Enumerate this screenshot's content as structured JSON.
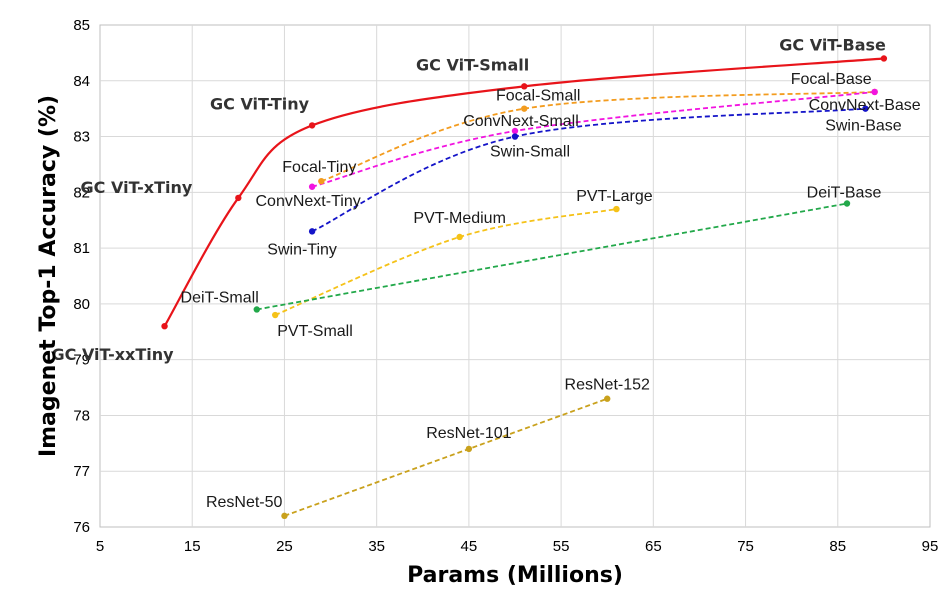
{
  "chart_data": {
    "type": "line",
    "xlabel": "Params (Millions)",
    "ylabel": "Imagenet Top-1 Accuracy (%)",
    "xlim": [
      5,
      95
    ],
    "ylim": [
      76,
      85
    ],
    "xticks": [
      5,
      15,
      25,
      35,
      45,
      55,
      65,
      75,
      85,
      95
    ],
    "yticks": [
      76,
      77,
      78,
      79,
      80,
      81,
      82,
      83,
      84,
      85
    ],
    "grid": true,
    "series": [
      {
        "id": "gcvit",
        "color": "#e8141a",
        "dashed": false,
        "smooth": true,
        "bold_labels": true,
        "points": [
          {
            "x": 12,
            "y": 79.6,
            "label": "GC ViT-xxTiny"
          },
          {
            "x": 20,
            "y": 81.9,
            "label": "GC ViT-xTiny"
          },
          {
            "x": 28,
            "y": 83.2,
            "label": "GC ViT-Tiny"
          },
          {
            "x": 51,
            "y": 83.9,
            "label": "GC ViT-Small"
          },
          {
            "x": 90,
            "y": 84.4,
            "label": "GC ViT-Base"
          }
        ]
      },
      {
        "id": "focal",
        "color": "#f39c1f",
        "dashed": true,
        "smooth": true,
        "points": [
          {
            "x": 29,
            "y": 82.2,
            "label": "Focal-Tiny"
          },
          {
            "x": 51,
            "y": 83.5,
            "label": "Focal-Small"
          },
          {
            "x": 89,
            "y": 83.8,
            "label": "Focal-Base"
          }
        ]
      },
      {
        "id": "convnext",
        "color": "#f214e0",
        "dashed": true,
        "smooth": true,
        "points": [
          {
            "x": 28,
            "y": 82.1,
            "label": "ConvNext-Tiny"
          },
          {
            "x": 50,
            "y": 83.1,
            "label": "ConvNext-Small"
          },
          {
            "x": 89,
            "y": 83.8,
            "label": "ConvNext-Base"
          }
        ]
      },
      {
        "id": "swin",
        "color": "#1414c8",
        "dashed": true,
        "smooth": true,
        "points": [
          {
            "x": 28,
            "y": 81.3,
            "label": "Swin-Tiny"
          },
          {
            "x": 50,
            "y": 83.0,
            "label": "Swin-Small"
          },
          {
            "x": 88,
            "y": 83.5,
            "label": "Swin-Base"
          }
        ]
      },
      {
        "id": "pvt",
        "color": "#f5c218",
        "dashed": true,
        "smooth": true,
        "points": [
          {
            "x": 24,
            "y": 79.8,
            "label": "PVT-Small"
          },
          {
            "x": 44,
            "y": 81.2,
            "label": "PVT-Medium"
          },
          {
            "x": 61,
            "y": 81.7,
            "label": "PVT-Large"
          }
        ]
      },
      {
        "id": "deit",
        "color": "#22a84a",
        "dashed": true,
        "smooth": false,
        "points": [
          {
            "x": 22,
            "y": 79.9,
            "label": "DeiT-Small"
          },
          {
            "x": 86,
            "y": 81.8,
            "label": "DeiT-Base"
          }
        ]
      },
      {
        "id": "resnet",
        "color": "#c9a11c",
        "dashed": true,
        "smooth": false,
        "points": [
          {
            "x": 25,
            "y": 76.2,
            "label": "ResNet-50"
          },
          {
            "x": 45,
            "y": 77.4,
            "label": "ResNet-101"
          },
          {
            "x": 60,
            "y": 78.3,
            "label": "ResNet-152"
          }
        ]
      }
    ]
  }
}
